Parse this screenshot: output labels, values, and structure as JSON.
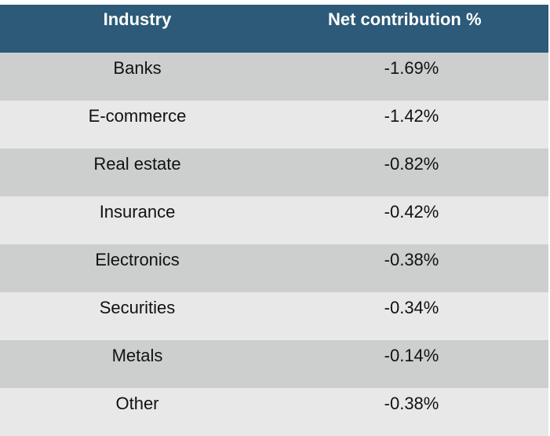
{
  "chart_data": {
    "type": "table",
    "columns": [
      "Industry",
      "Net contribution  %"
    ],
    "rows": [
      {
        "industry": "Banks",
        "value": "-1.69%"
      },
      {
        "industry": "E-commerce",
        "value": "-1.42%"
      },
      {
        "industry": "Real estate",
        "value": "-0.82%"
      },
      {
        "industry": "Insurance",
        "value": "-0.42%"
      },
      {
        "industry": "Electronics",
        "value": "-0.38%"
      },
      {
        "industry": "Securities",
        "value": "-0.34%"
      },
      {
        "industry": "Metals",
        "value": "-0.14%"
      },
      {
        "industry": "Other",
        "value": "-0.38%"
      }
    ]
  },
  "colors": {
    "header_bg": "#2c5a78",
    "header_text": "#ffffff",
    "row_odd": "#cdcfcf",
    "row_even": "#e8e8e8",
    "cell_text": "#111111"
  }
}
